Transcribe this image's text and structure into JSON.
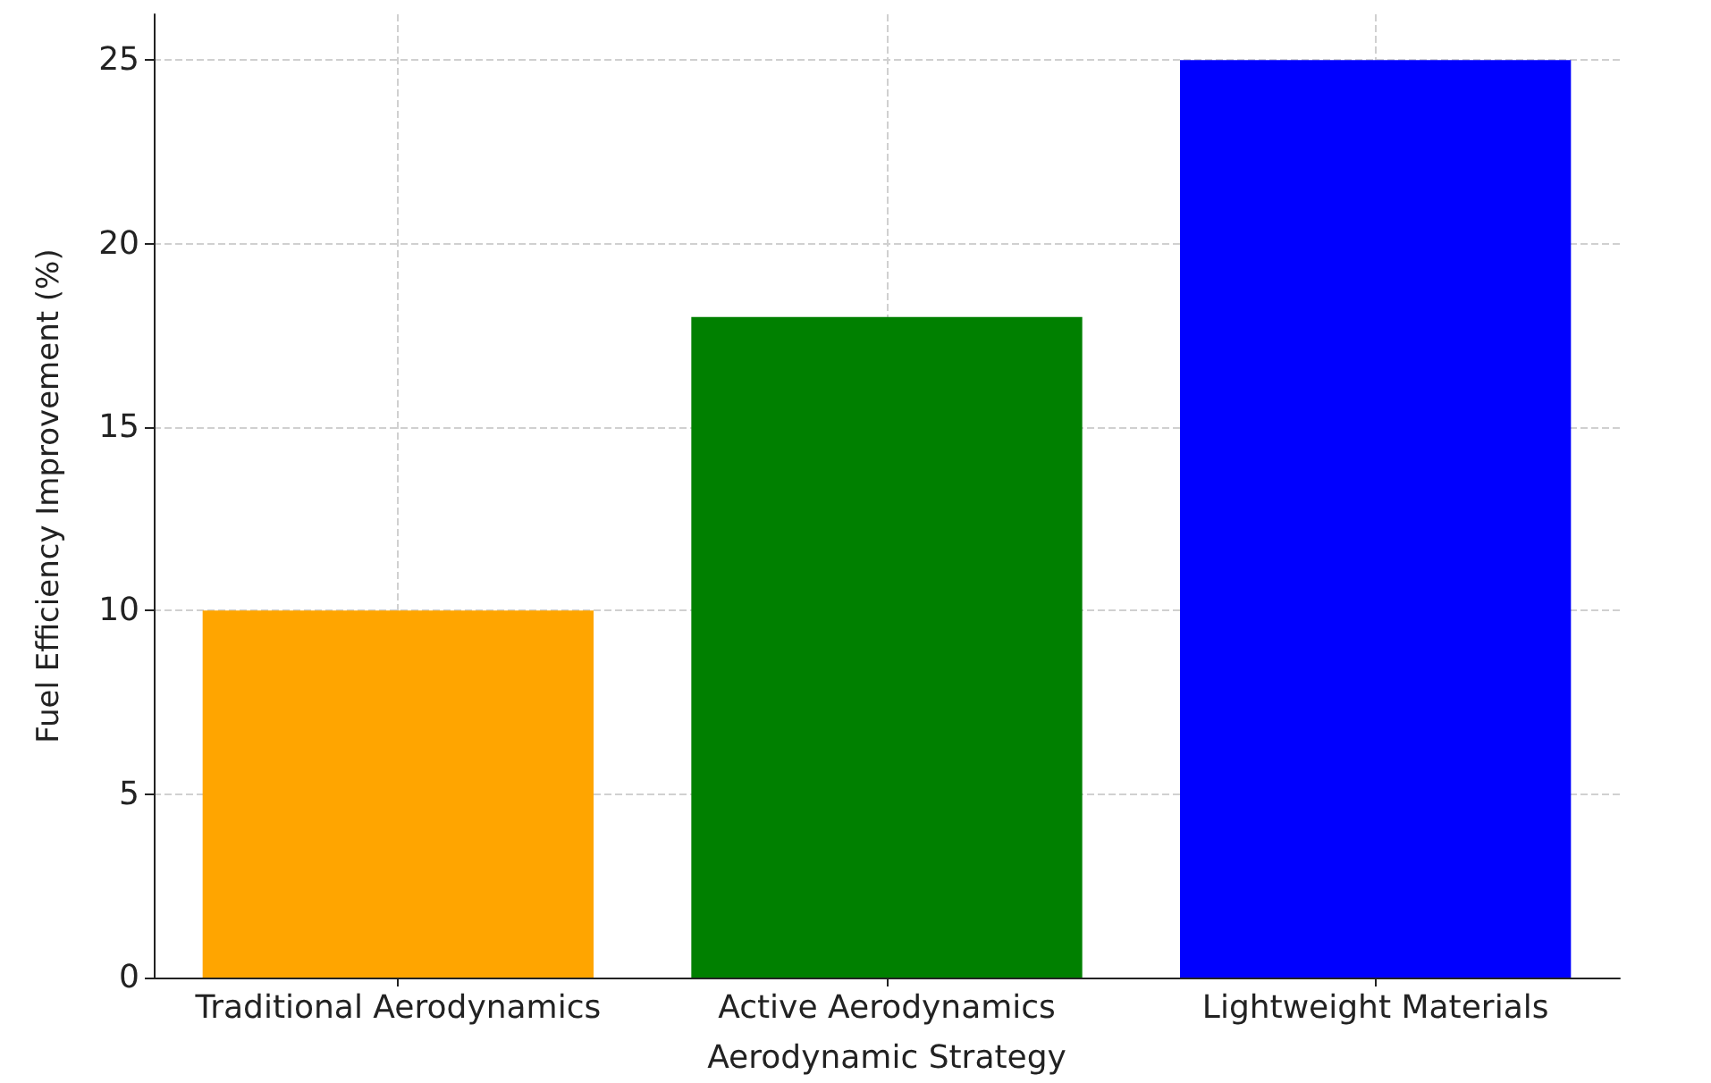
{
  "chart_data": {
    "type": "bar",
    "xlabel": "Aerodynamic Strategy",
    "ylabel": "Fuel Efficiency Improvement (%)",
    "categories": [
      "Traditional Aerodynamics",
      "Active Aerodynamics",
      "Lightweight Materials"
    ],
    "values": [
      10,
      18,
      25
    ],
    "colors": [
      "#ffa500",
      "#008000",
      "#0000ff"
    ],
    "ylim": [
      0,
      26.25
    ],
    "yticks": [
      0,
      5,
      10,
      15,
      20,
      25
    ],
    "grid": true
  }
}
